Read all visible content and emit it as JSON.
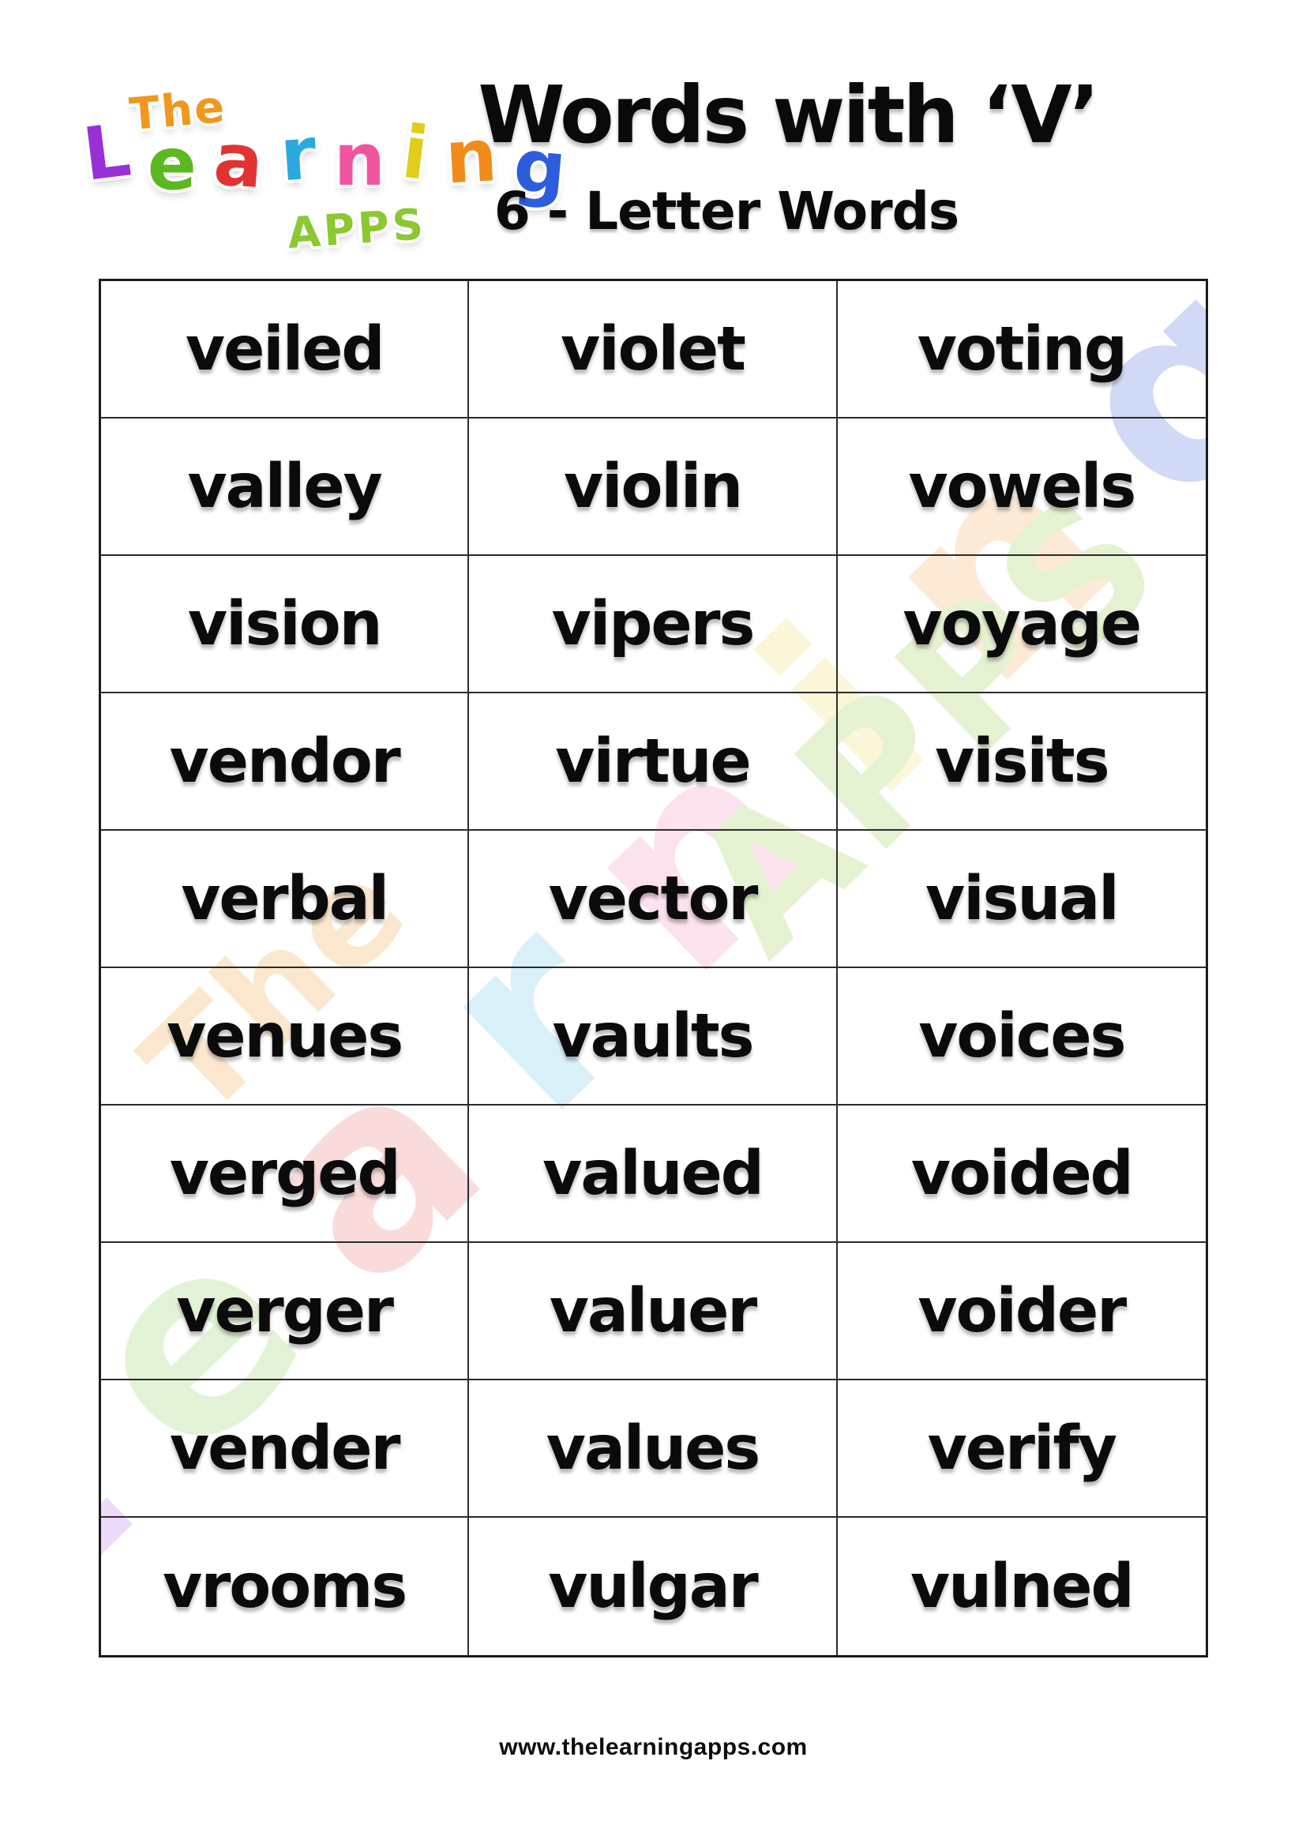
{
  "page": {
    "title": "Words with ‘V’",
    "subtitle": "6 - Letter Words",
    "footer_url": "www.thelearningapps.com"
  },
  "logo": {
    "the": "The",
    "the_color": "#f0971f",
    "learning_letters": [
      {
        "ch": "L",
        "color": "#9a2fd8"
      },
      {
        "ch": "e",
        "color": "#5cb821"
      },
      {
        "ch": "a",
        "color": "#e23333"
      },
      {
        "ch": "r",
        "color": "#2aa9df"
      },
      {
        "ch": "n",
        "color": "#f0559f"
      },
      {
        "ch": "i",
        "color": "#e0cd1c"
      },
      {
        "ch": "n",
        "color": "#f08b1c"
      },
      {
        "ch": "g",
        "color": "#2c5ddd"
      }
    ],
    "apps": "APPS",
    "apps_color": "#8bc832"
  },
  "word_table": {
    "rows": [
      [
        "veiled",
        "violet",
        "voting"
      ],
      [
        "valley",
        "violin",
        "vowels"
      ],
      [
        "vision",
        "vipers",
        "voyage"
      ],
      [
        "vendor",
        "virtue",
        "visits"
      ],
      [
        "verbal",
        "vector",
        "visual"
      ],
      [
        "venues",
        "vaults",
        "voices"
      ],
      [
        "verged",
        "valued",
        "voided"
      ],
      [
        "verger",
        "valuer",
        "voider"
      ],
      [
        "vender",
        "values",
        "verify"
      ],
      [
        "vrooms",
        "vulgar",
        "vulned"
      ]
    ]
  }
}
